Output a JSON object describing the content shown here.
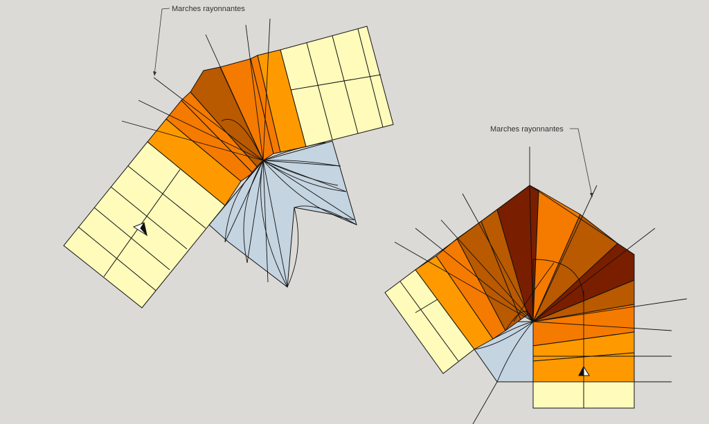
{
  "annotations": {
    "left_label": "Marches rayonnantes",
    "right_label": "Marches rayonnantes"
  },
  "colors": {
    "background": "#dcdad6",
    "pale_yellow": "#fefbbb",
    "orange_light": "#fe9a00",
    "orange": "#f57a00",
    "brown": "#b95900",
    "dark_brown": "#7a1e00",
    "landing_blue": "#c4d4e0",
    "line": "#111111"
  },
  "icons": [
    "north-arrow-icon"
  ]
}
